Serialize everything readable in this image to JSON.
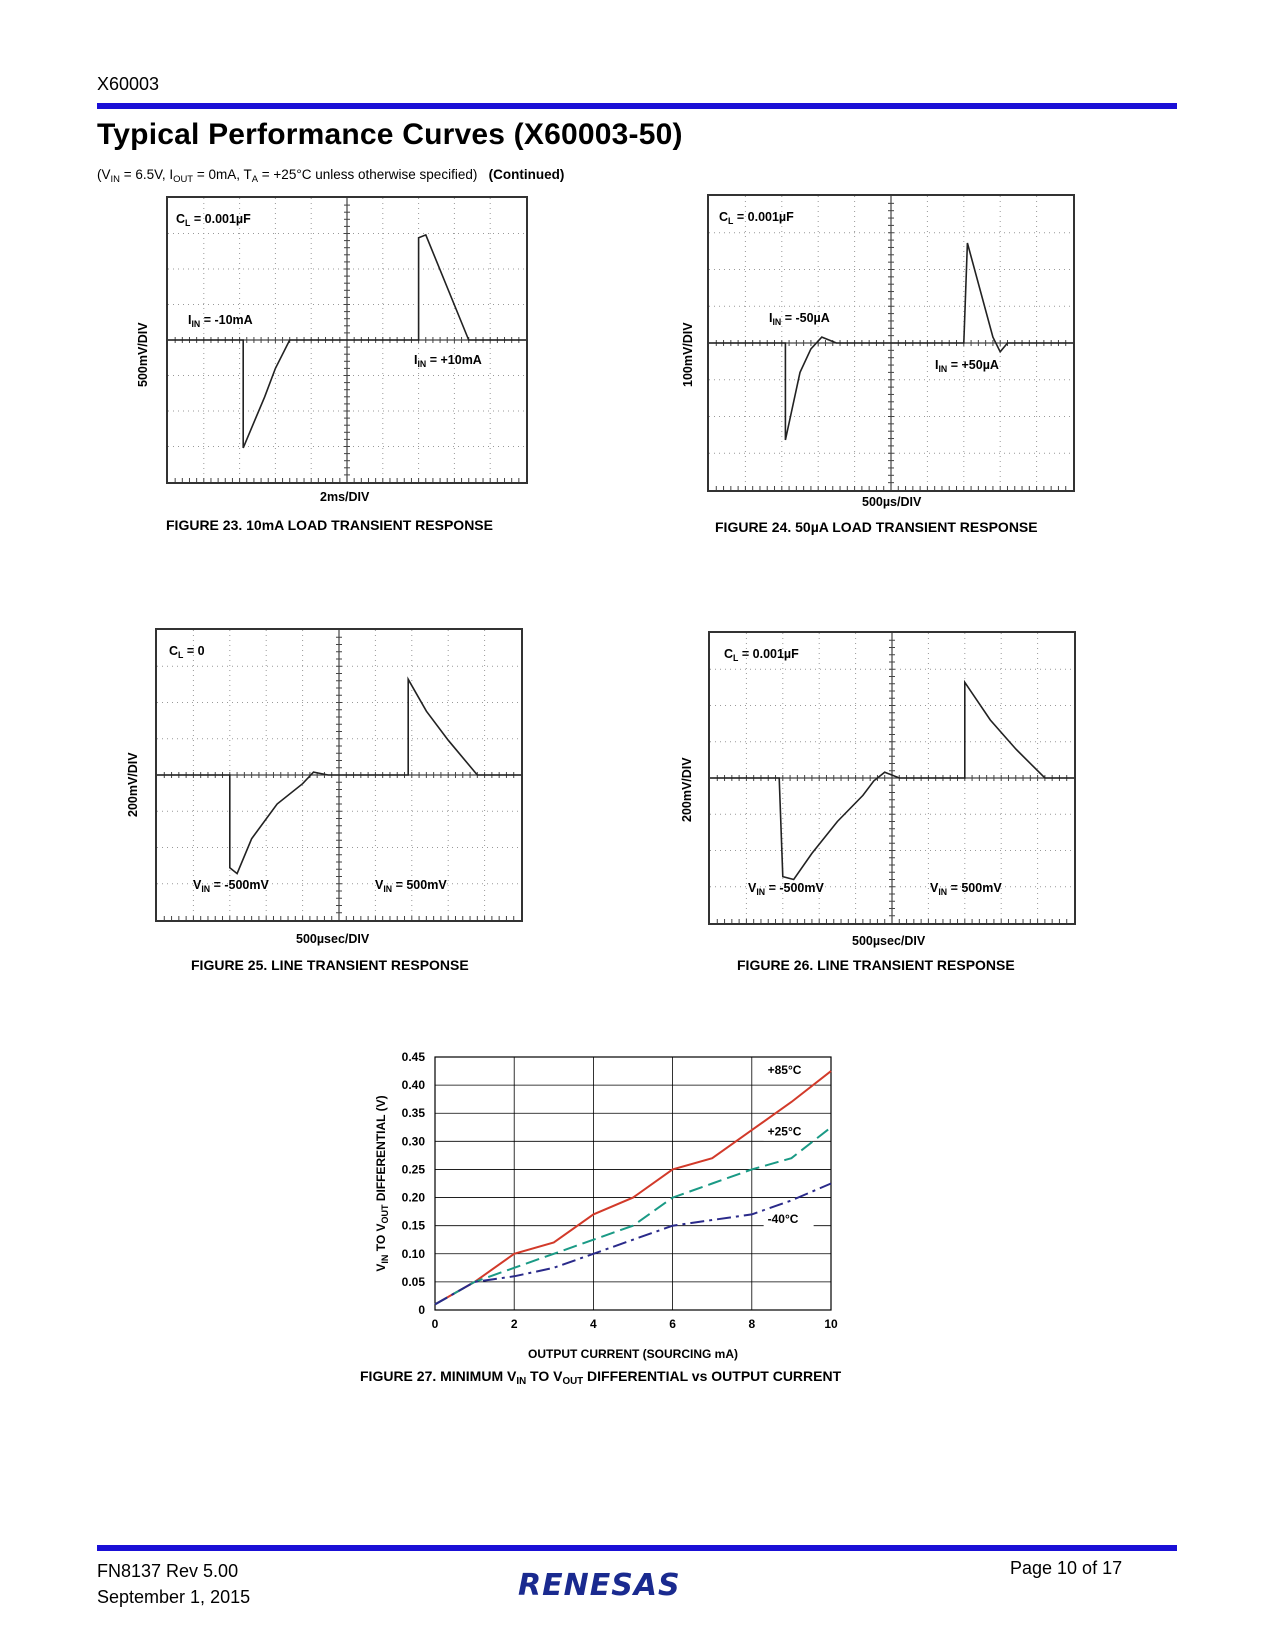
{
  "header": {
    "doc_id": "X60003",
    "title": "Typical Performance Curves (X60003-50)",
    "conditions": {
      "vin": "6.5V",
      "iout": "0mA",
      "ta": "+25°C",
      "suffix": "unless otherwise specified)",
      "continued": "(Continued)"
    }
  },
  "figures": [
    {
      "caption": "FIGURE 23.  10mA LOAD TRANSIENT RESPONSE",
      "ylabel": "500mV/DIV",
      "xlabel": "2ms/DIV",
      "cl": "0.001µF",
      "label_a": "-10mA",
      "label_b": "+10mA"
    },
    {
      "caption": "FIGURE 24.  50µA LOAD TRANSIENT RESPONSE",
      "ylabel": "100mV/DIV",
      "xlabel": "500µs/DIV",
      "cl": "0.001µF",
      "label_a": "-50µA",
      "label_b": "+50µA"
    },
    {
      "caption": "FIGURE 25.  LINE TRANSIENT RESPONSE",
      "ylabel": "200mV/DIV",
      "xlabel": "500µsec/DIV",
      "cl": "0",
      "label_a": "-500mV",
      "label_b": "500mV"
    },
    {
      "caption": "FIGURE 26.  LINE TRANSIENT RESPONSE",
      "ylabel": "200mV/DIV",
      "xlabel": "500µsec/DIV",
      "cl": "0.001µF",
      "label_a": "-500mV",
      "label_b": "500mV"
    }
  ],
  "figure27": {
    "caption_pre": "FIGURE 27.  MINIMUM V",
    "caption_sub1": "IN",
    "caption_mid": " TO V",
    "caption_sub2": "OUT",
    "caption_post": " DIFFERENTIAL vs OUTPUT CURRENT"
  },
  "chart_data": {
    "type": "line",
    "xlabel": "OUTPUT CURRENT (SOURCING mA)",
    "ylabel": "VIN TO VOUT DIFFERENTIAL (V)",
    "xlim": [
      0,
      10
    ],
    "ylim": [
      0,
      0.45
    ],
    "xticks": [
      0,
      2,
      4,
      6,
      8,
      10
    ],
    "yticks": [
      0,
      0.05,
      0.1,
      0.15,
      0.2,
      0.25,
      0.3,
      0.35,
      0.4,
      0.45
    ],
    "ytick_labels": [
      "0",
      "0.05",
      "0.10",
      "0.15",
      "0.20",
      "0.25",
      "0.30",
      "0.35",
      "0.40",
      "0.45"
    ],
    "grid": true,
    "series": [
      {
        "name": "+85°C",
        "color": "#d23a2a",
        "dash": "solid",
        "x": [
          0,
          1,
          2,
          3,
          4,
          5,
          6,
          7,
          8,
          9,
          10
        ],
        "y": [
          0.01,
          0.05,
          0.1,
          0.12,
          0.17,
          0.2,
          0.25,
          0.27,
          0.32,
          0.37,
          0.425
        ]
      },
      {
        "name": "+25°C",
        "color": "#1a9a85",
        "dash": "dashed",
        "x": [
          0,
          1,
          2,
          3,
          4,
          5,
          6,
          7,
          8,
          9,
          10
        ],
        "y": [
          0.01,
          0.05,
          0.075,
          0.1,
          0.125,
          0.15,
          0.2,
          0.225,
          0.25,
          0.27,
          0.325
        ]
      },
      {
        "name": "-40°C",
        "color": "#2a2a8a",
        "dash": "dashdot",
        "x": [
          0,
          1,
          2,
          3,
          4,
          5,
          6,
          7,
          8,
          9,
          10
        ],
        "y": [
          0.01,
          0.05,
          0.06,
          0.075,
          0.1,
          0.125,
          0.15,
          0.16,
          0.17,
          0.195,
          0.225
        ]
      }
    ]
  },
  "footer": {
    "doc_number": "FN8137  Rev 5.00",
    "date": "September 1, 2015",
    "page": "Page 10 of 17",
    "logo": "RENESAS"
  }
}
